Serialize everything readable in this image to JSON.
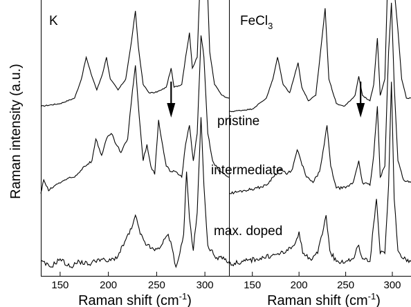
{
  "chart_data": [
    {
      "type": "line",
      "panel_label": "K",
      "xlabel": "Raman shift (cm",
      "xlabel_sup": "-1",
      "xlabel_close": ")",
      "ylabel": "Raman intensity (a.u.)",
      "xlim": [
        130,
        325
      ],
      "xticks": [
        150,
        200,
        250,
        300
      ],
      "arrow_at": 265,
      "series": [
        {
          "name": "pristine",
          "offset": 0.62,
          "points": [
            [
              130,
              0.0
            ],
            [
              150,
              0.01
            ],
            [
              165,
              0.03
            ],
            [
              172,
              0.1
            ],
            [
              177,
              0.18
            ],
            [
              182,
              0.12
            ],
            [
              188,
              0.06
            ],
            [
              194,
              0.12
            ],
            [
              198,
              0.18
            ],
            [
              202,
              0.1
            ],
            [
              210,
              0.06
            ],
            [
              218,
              0.1
            ],
            [
              224,
              0.24
            ],
            [
              228,
              0.35
            ],
            [
              231,
              0.22
            ],
            [
              236,
              0.08
            ],
            [
              242,
              0.05
            ],
            [
              248,
              0.05
            ],
            [
              255,
              0.06
            ],
            [
              260,
              0.07
            ],
            [
              265,
              0.14
            ],
            [
              268,
              0.07
            ],
            [
              276,
              0.08
            ],
            [
              280,
              0.18
            ],
            [
              284,
              0.27
            ],
            [
              287,
              0.14
            ],
            [
              292,
              0.18
            ],
            [
              296,
              0.55
            ],
            [
              299,
              0.81
            ],
            [
              302,
              0.5
            ],
            [
              305,
              0.2
            ],
            [
              310,
              0.08
            ],
            [
              318,
              0.04
            ],
            [
              325,
              0.03
            ]
          ]
        },
        {
          "name": "intermediate",
          "offset": 0.3,
          "points": [
            [
              130,
              0.0
            ],
            [
              133,
              0.05
            ],
            [
              138,
              0.01
            ],
            [
              145,
              0.03
            ],
            [
              155,
              0.05
            ],
            [
              165,
              0.06
            ],
            [
              175,
              0.1
            ],
            [
              183,
              0.12
            ],
            [
              187,
              0.2
            ],
            [
              193,
              0.14
            ],
            [
              198,
              0.2
            ],
            [
              203,
              0.22
            ],
            [
              208,
              0.18
            ],
            [
              213,
              0.15
            ],
            [
              220,
              0.2
            ],
            [
              225,
              0.38
            ],
            [
              228,
              0.47
            ],
            [
              232,
              0.28
            ],
            [
              236,
              0.12
            ],
            [
              240,
              0.18
            ],
            [
              244,
              0.1
            ],
            [
              248,
              0.07
            ],
            [
              252,
              0.27
            ],
            [
              255,
              0.2
            ],
            [
              260,
              0.1
            ],
            [
              265,
              0.08
            ],
            [
              270,
              0.08
            ],
            [
              276,
              0.06
            ],
            [
              280,
              0.18
            ],
            [
              284,
              0.25
            ],
            [
              288,
              0.12
            ],
            [
              292,
              0.22
            ],
            [
              296,
              0.58
            ],
            [
              299,
              0.5
            ],
            [
              303,
              0.22
            ],
            [
              308,
              0.12
            ],
            [
              315,
              0.08
            ],
            [
              325,
              0.06
            ]
          ]
        },
        {
          "name": "max. doped",
          "offset": 0.03,
          "points": [
            [
              130,
              0.02
            ],
            [
              140,
              0.0
            ],
            [
              150,
              0.03
            ],
            [
              160,
              0.0
            ],
            [
              170,
              0.02
            ],
            [
              180,
              0.01
            ],
            [
              190,
              0.03
            ],
            [
              200,
              0.02
            ],
            [
              210,
              0.04
            ],
            [
              218,
              0.1
            ],
            [
              224,
              0.14
            ],
            [
              228,
              0.19
            ],
            [
              233,
              0.12
            ],
            [
              240,
              0.08
            ],
            [
              248,
              0.06
            ],
            [
              255,
              0.08
            ],
            [
              262,
              0.12
            ],
            [
              266,
              0.07
            ],
            [
              270,
              0.0
            ],
            [
              274,
              0.05
            ],
            [
              278,
              0.12
            ],
            [
              281,
              0.35
            ],
            [
              284,
              0.18
            ],
            [
              288,
              0.06
            ],
            [
              292,
              0.2
            ],
            [
              296,
              0.55
            ],
            [
              299,
              0.3
            ],
            [
              303,
              0.08
            ],
            [
              310,
              0.04
            ],
            [
              318,
              0.03
            ],
            [
              325,
              0.02
            ]
          ]
        }
      ]
    },
    {
      "type": "line",
      "panel_label": "FeCl",
      "panel_label_sub": "3",
      "xlabel": "Raman shift (cm",
      "xlabel_sup": "-1",
      "xlabel_close": ")",
      "xlim": [
        125,
        320
      ],
      "xticks": [
        150,
        200,
        250,
        300
      ],
      "arrow_at": 266,
      "series": [
        {
          "name": "pristine",
          "offset": 0.6,
          "points": [
            [
              125,
              0.0
            ],
            [
              150,
              0.01
            ],
            [
              165,
              0.05
            ],
            [
              172,
              0.12
            ],
            [
              177,
              0.2
            ],
            [
              183,
              0.1
            ],
            [
              190,
              0.07
            ],
            [
              195,
              0.13
            ],
            [
              199,
              0.18
            ],
            [
              203,
              0.09
            ],
            [
              210,
              0.04
            ],
            [
              218,
              0.06
            ],
            [
              224,
              0.25
            ],
            [
              228,
              0.38
            ],
            [
              232,
              0.12
            ],
            [
              240,
              0.03
            ],
            [
              248,
              0.02
            ],
            [
              255,
              0.04
            ],
            [
              260,
              0.06
            ],
            [
              264,
              0.13
            ],
            [
              268,
              0.06
            ],
            [
              276,
              0.04
            ],
            [
              280,
              0.1
            ],
            [
              284,
              0.27
            ],
            [
              287,
              0.06
            ],
            [
              292,
              0.12
            ],
            [
              296,
              0.6
            ],
            [
              299,
              0.83
            ],
            [
              302,
              0.45
            ],
            [
              306,
              0.3
            ],
            [
              310,
              0.12
            ],
            [
              315,
              0.05
            ],
            [
              320,
              0.05
            ]
          ]
        },
        {
          "name": "intermediate",
          "offset": 0.3,
          "points": [
            [
              125,
              0.0
            ],
            [
              140,
              0.01
            ],
            [
              155,
              0.02
            ],
            [
              165,
              0.03
            ],
            [
              172,
              0.06
            ],
            [
              180,
              0.09
            ],
            [
              187,
              0.07
            ],
            [
              193,
              0.09
            ],
            [
              198,
              0.16
            ],
            [
              202,
              0.12
            ],
            [
              208,
              0.06
            ],
            [
              215,
              0.04
            ],
            [
              222,
              0.08
            ],
            [
              227,
              0.18
            ],
            [
              230,
              0.25
            ],
            [
              234,
              0.1
            ],
            [
              240,
              0.02
            ],
            [
              250,
              0.02
            ],
            [
              258,
              0.04
            ],
            [
              264,
              0.12
            ],
            [
              268,
              0.04
            ],
            [
              276,
              0.03
            ],
            [
              280,
              0.14
            ],
            [
              284,
              0.32
            ],
            [
              287,
              0.06
            ],
            [
              292,
              0.1
            ],
            [
              296,
              0.52
            ],
            [
              299,
              0.7
            ],
            [
              302,
              0.4
            ],
            [
              306,
              0.12
            ],
            [
              312,
              0.05
            ],
            [
              320,
              0.04
            ]
          ]
        },
        {
          "name": "max. doped",
          "offset": 0.03,
          "points": [
            [
              125,
              0.01
            ],
            [
              140,
              0.02
            ],
            [
              155,
              0.03
            ],
            [
              170,
              0.04
            ],
            [
              180,
              0.05
            ],
            [
              188,
              0.06
            ],
            [
              195,
              0.08
            ],
            [
              200,
              0.13
            ],
            [
              204,
              0.05
            ],
            [
              212,
              0.03
            ],
            [
              220,
              0.05
            ],
            [
              225,
              0.12
            ],
            [
              229,
              0.19
            ],
            [
              233,
              0.06
            ],
            [
              240,
              0.02
            ],
            [
              250,
              0.02
            ],
            [
              258,
              0.03
            ],
            [
              264,
              0.08
            ],
            [
              268,
              0.03
            ],
            [
              276,
              0.02
            ],
            [
              280,
              0.16
            ],
            [
              283,
              0.25
            ],
            [
              287,
              0.05
            ],
            [
              292,
              0.05
            ],
            [
              296,
              0.3
            ],
            [
              299,
              0.68
            ],
            [
              302,
              0.25
            ],
            [
              306,
              0.06
            ],
            [
              312,
              0.03
            ],
            [
              320,
              0.02
            ]
          ]
        }
      ]
    }
  ]
}
